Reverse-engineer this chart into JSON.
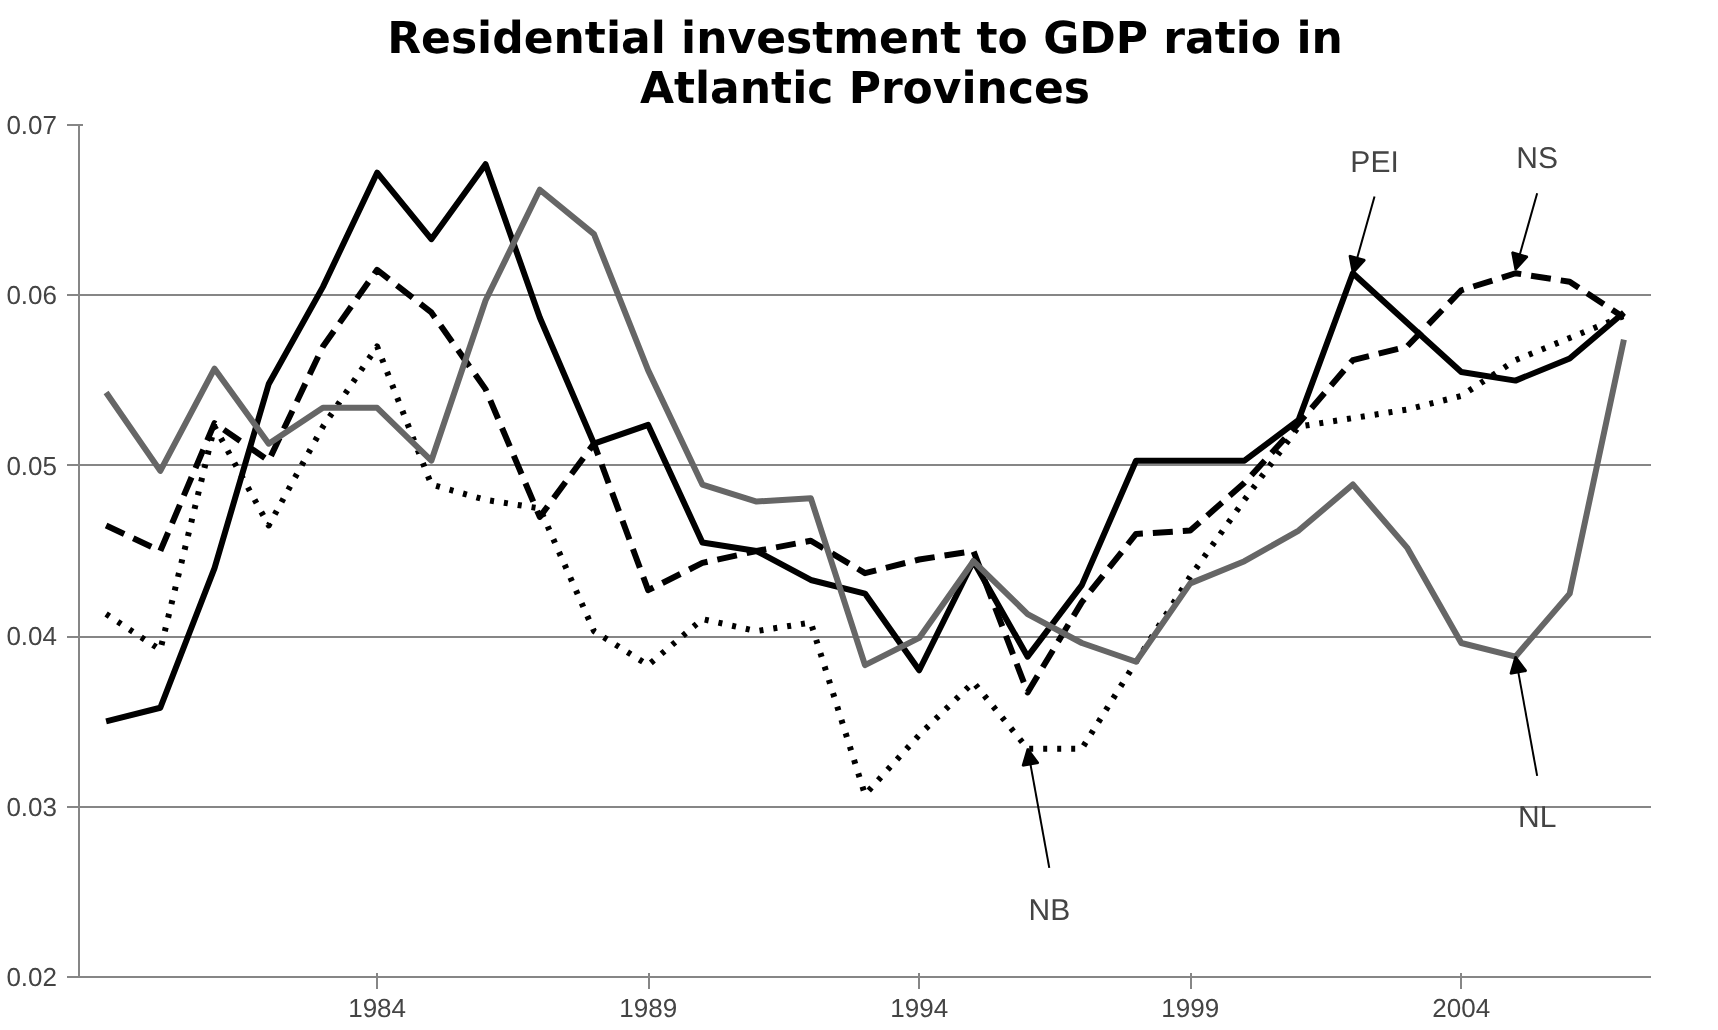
{
  "chart_data": {
    "type": "line",
    "title": "Residential investment to GDP ratio in\nAtlantic Provinces",
    "x": [
      1979,
      1980,
      1981,
      1982,
      1983,
      1984,
      1985,
      1986,
      1987,
      1988,
      1989,
      1990,
      1991,
      1992,
      1993,
      1994,
      1995,
      1996,
      1997,
      1998,
      1999,
      2000,
      2001,
      2002,
      2003,
      2004,
      2005,
      2006,
      2007
    ],
    "series": [
      {
        "color": "#000000",
        "line_style": "solid",
        "values": [
          0.035,
          0.0358,
          0.044,
          0.0548,
          0.0605,
          0.0672,
          0.0633,
          0.0677,
          0.0587,
          0.0513,
          0.0524,
          0.0455,
          0.045,
          0.0433,
          0.0425,
          0.038,
          0.0444,
          0.0388,
          0.043,
          0.0503,
          0.0503,
          0.0503,
          0.0527,
          0.0613,
          0.0584,
          0.0555,
          0.055,
          0.0563,
          0.059
        ]
      },
      {
        "color": "#000000",
        "line_style": "dashed",
        "values": [
          0.0465,
          0.045,
          0.0525,
          0.0503,
          0.057,
          0.0615,
          0.059,
          0.0545,
          0.047,
          0.0513,
          0.0427,
          0.0443,
          0.045,
          0.0456,
          0.0437,
          0.0445,
          0.045,
          0.0367,
          0.042,
          0.046,
          0.0462,
          0.049,
          0.0525,
          0.0562,
          0.057,
          0.0603,
          0.0613,
          0.0608,
          0.0587
        ]
      },
      {
        "color": "#000000",
        "line_style": "dotted",
        "values": [
          0.0413,
          0.0392,
          0.0523,
          0.0465,
          0.0523,
          0.057,
          0.0489,
          0.048,
          0.0475,
          0.0403,
          0.0383,
          0.041,
          0.0403,
          0.0408,
          0.0307,
          0.0342,
          0.0373,
          0.0334,
          0.0334,
          0.0385,
          0.0435,
          0.048,
          0.0523,
          0.0528,
          0.0533,
          0.0541,
          0.0562,
          0.0575,
          0.0588
        ]
      },
      {
        "color": "#666666",
        "line_style": "solid",
        "values": [
          0.0543,
          0.0497,
          0.0557,
          0.0513,
          0.0534,
          0.0534,
          0.0503,
          0.0597,
          0.0662,
          0.0636,
          0.0556,
          0.0489,
          0.0479,
          0.0481,
          0.0383,
          0.0399,
          0.0444,
          0.0413,
          0.0396,
          0.0385,
          0.0431,
          0.0444,
          0.0462,
          0.0489,
          0.0452,
          0.0396,
          0.0388,
          0.0425,
          0.0574
        ]
      }
    ],
    "annotations": [
      {
        "text": "PEI",
        "x": 2002,
        "y": 0.0613
      },
      {
        "text": "NS",
        "x": 2005,
        "y": 0.0615
      },
      {
        "text": "NB",
        "x": 1996,
        "y": 0.0334
      },
      {
        "text": "NL",
        "x": 2005,
        "y": 0.0388
      }
    ],
    "xlim": [
      1978.5,
      2007.5
    ],
    "xticks": [
      1984,
      1989,
      1994,
      1999,
      2004
    ],
    "ylim": [
      0.02,
      0.07
    ],
    "yticks": [
      0.02,
      0.03,
      0.04,
      0.05,
      0.06,
      0.07
    ],
    "grid": "y"
  }
}
